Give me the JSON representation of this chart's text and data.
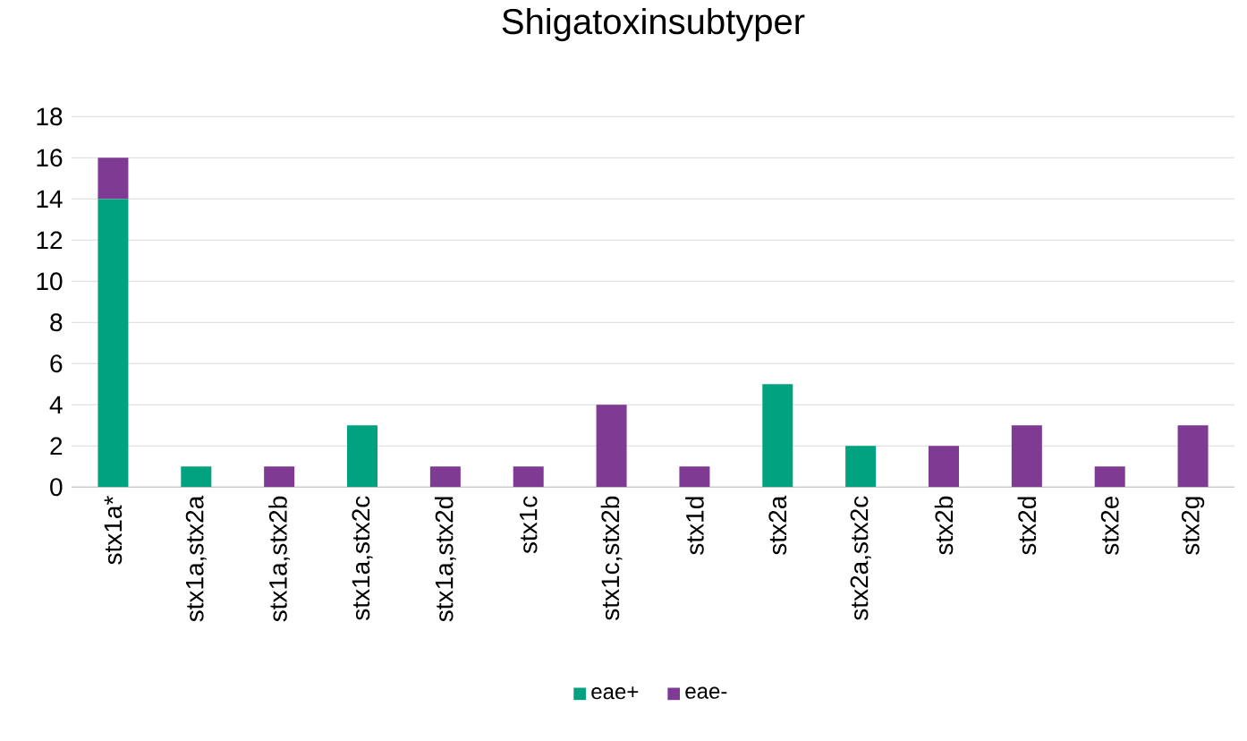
{
  "chart_data": {
    "type": "bar",
    "title": "Shigatoxinsubtyper",
    "stacked": true,
    "categories": [
      "stx1a*",
      "stx1a,stx2a",
      "stx1a,stx2b",
      "stx1a,stx2c",
      "stx1a,stx2d",
      "stx1c",
      "stx1c,stx2b",
      "stx1d",
      "stx2a",
      "stx2a,stx2c",
      "stx2b",
      "stx2d",
      "stx2e",
      "stx2g"
    ],
    "series": [
      {
        "name": "eae+",
        "color": "#00a27f",
        "values": [
          14,
          1,
          0,
          3,
          0,
          0,
          0,
          0,
          5,
          2,
          0,
          0,
          0,
          0
        ]
      },
      {
        "name": "eae-",
        "color": "#7f3a94",
        "values": [
          2,
          0,
          1,
          0,
          1,
          1,
          4,
          1,
          0,
          0,
          2,
          3,
          1,
          3
        ]
      }
    ],
    "ylim": [
      0,
      18
    ],
    "yticks": [
      0,
      2,
      4,
      6,
      8,
      10,
      12,
      14,
      16,
      18
    ],
    "grid": "y",
    "legend": "bottom"
  }
}
